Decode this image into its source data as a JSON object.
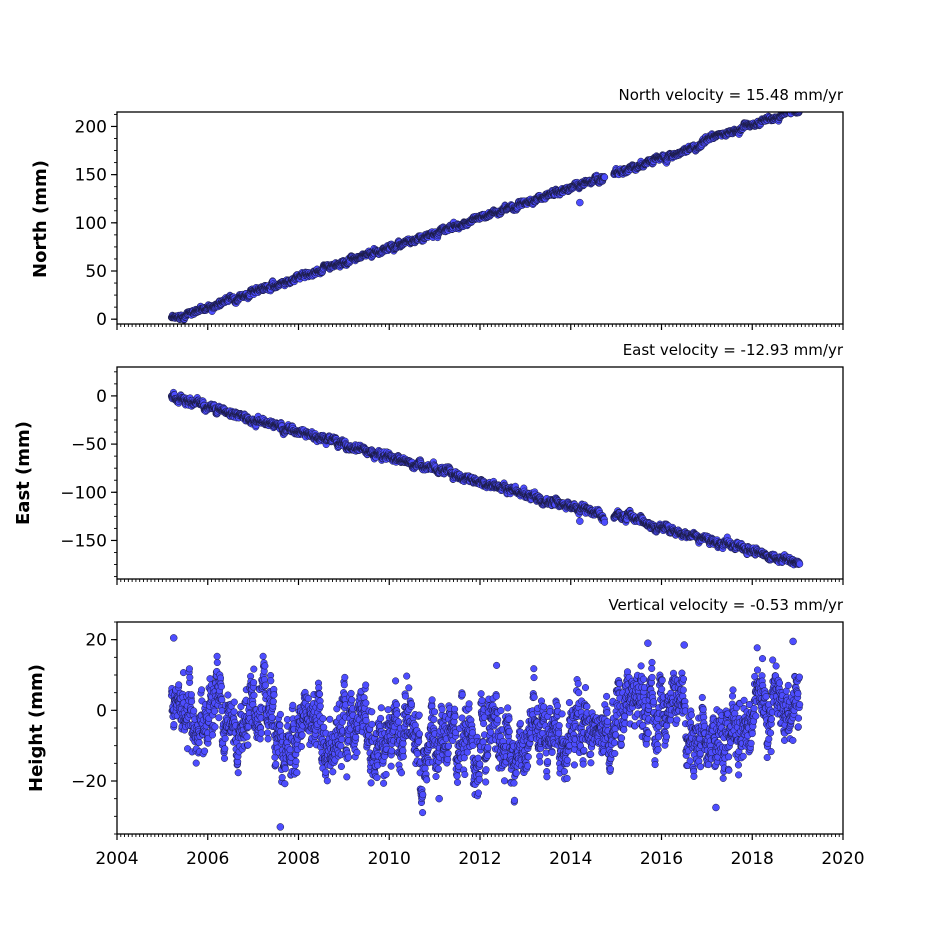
{
  "chart_data": [
    {
      "type": "scatter",
      "title": "North velocity = 15.48 mm/yr",
      "ylabel": "North (mm)",
      "xlim": [
        2004,
        2020
      ],
      "ylim": [
        -5,
        215
      ],
      "yticks": [
        0,
        50,
        100,
        150,
        200
      ],
      "ytick_labels": [
        "0",
        "50",
        "100",
        "150",
        "200"
      ],
      "x_range": [
        2005.2,
        2019.05
      ],
      "trend": {
        "slope": 15.48,
        "intercept_at": 2005.2,
        "y_at_start": 0,
        "noise": 1.4
      },
      "features": [
        {
          "kind": "outlier",
          "x": 2014.2,
          "y": 121
        },
        {
          "kind": "gap",
          "x_range": [
            2014.75,
            2014.95
          ]
        },
        {
          "kind": "offset",
          "x": 2016.9,
          "dy": 3.5
        }
      ],
      "grid": false
    },
    {
      "type": "scatter",
      "title": "East velocity = -12.93 mm/yr",
      "ylabel": "East (mm)",
      "xlim": [
        2004,
        2020
      ],
      "ylim": [
        -190,
        30
      ],
      "yticks": [
        0,
        -50,
        -100,
        -150
      ],
      "ytick_labels": [
        "0",
        "−50",
        "−100",
        "−150"
      ],
      "x_range": [
        2005.2,
        2019.05
      ],
      "trend": {
        "slope": -12.93,
        "intercept_at": 2005.2,
        "y_at_start": -1,
        "noise": 1.8
      },
      "features": [
        {
          "kind": "outlier",
          "x": 2014.2,
          "y": -130
        },
        {
          "kind": "gap",
          "x_range": [
            2014.75,
            2014.95
          ]
        },
        {
          "kind": "offset",
          "x": 2014.9,
          "dy": 5
        }
      ],
      "grid": false
    },
    {
      "type": "scatter",
      "title": "Vertical velocity = -0.53 mm/yr",
      "ylabel": "Height (mm)",
      "xlim": [
        2004,
        2020
      ],
      "ylim": [
        -35,
        25
      ],
      "yticks": [
        20,
        0,
        -20
      ],
      "ytick_labels": [
        "20",
        "0",
        "−20"
      ],
      "x_range": [
        2005.2,
        2019.05
      ],
      "trend": {
        "slope": -0.53,
        "intercept_at": 2005.2,
        "y_at_start": -1,
        "noise": 4.5
      },
      "seasonal_means": [
        [
          2005.2,
          -1
        ],
        [
          2007.5,
          -3
        ],
        [
          2009.0,
          -6
        ],
        [
          2011.0,
          -9
        ],
        [
          2013.0,
          -8
        ],
        [
          2014.5,
          -4
        ],
        [
          2015.8,
          5
        ],
        [
          2016.5,
          -1
        ],
        [
          2017.2,
          -12
        ],
        [
          2018.0,
          -4
        ],
        [
          2018.6,
          3
        ],
        [
          2019.05,
          1
        ]
      ],
      "outliers": [
        [
          2007.6,
          -33
        ],
        [
          2005.25,
          20.5
        ],
        [
          2015.7,
          19
        ],
        [
          2016.5,
          18.5
        ],
        [
          2018.9,
          19.5
        ],
        [
          2011.1,
          -25
        ],
        [
          2017.2,
          -27.5
        ]
      ],
      "grid": false
    }
  ],
  "xaxis": {
    "ticks": [
      2004,
      2006,
      2008,
      2010,
      2012,
      2014,
      2016,
      2018,
      2020
    ],
    "tick_labels": [
      "2004",
      "2006",
      "2008",
      "2010",
      "2012",
      "2014",
      "2016",
      "2018",
      "2020"
    ]
  },
  "colors": {
    "marker_fill": "#4d4dff",
    "marker_edge": "#1a1a40"
  }
}
